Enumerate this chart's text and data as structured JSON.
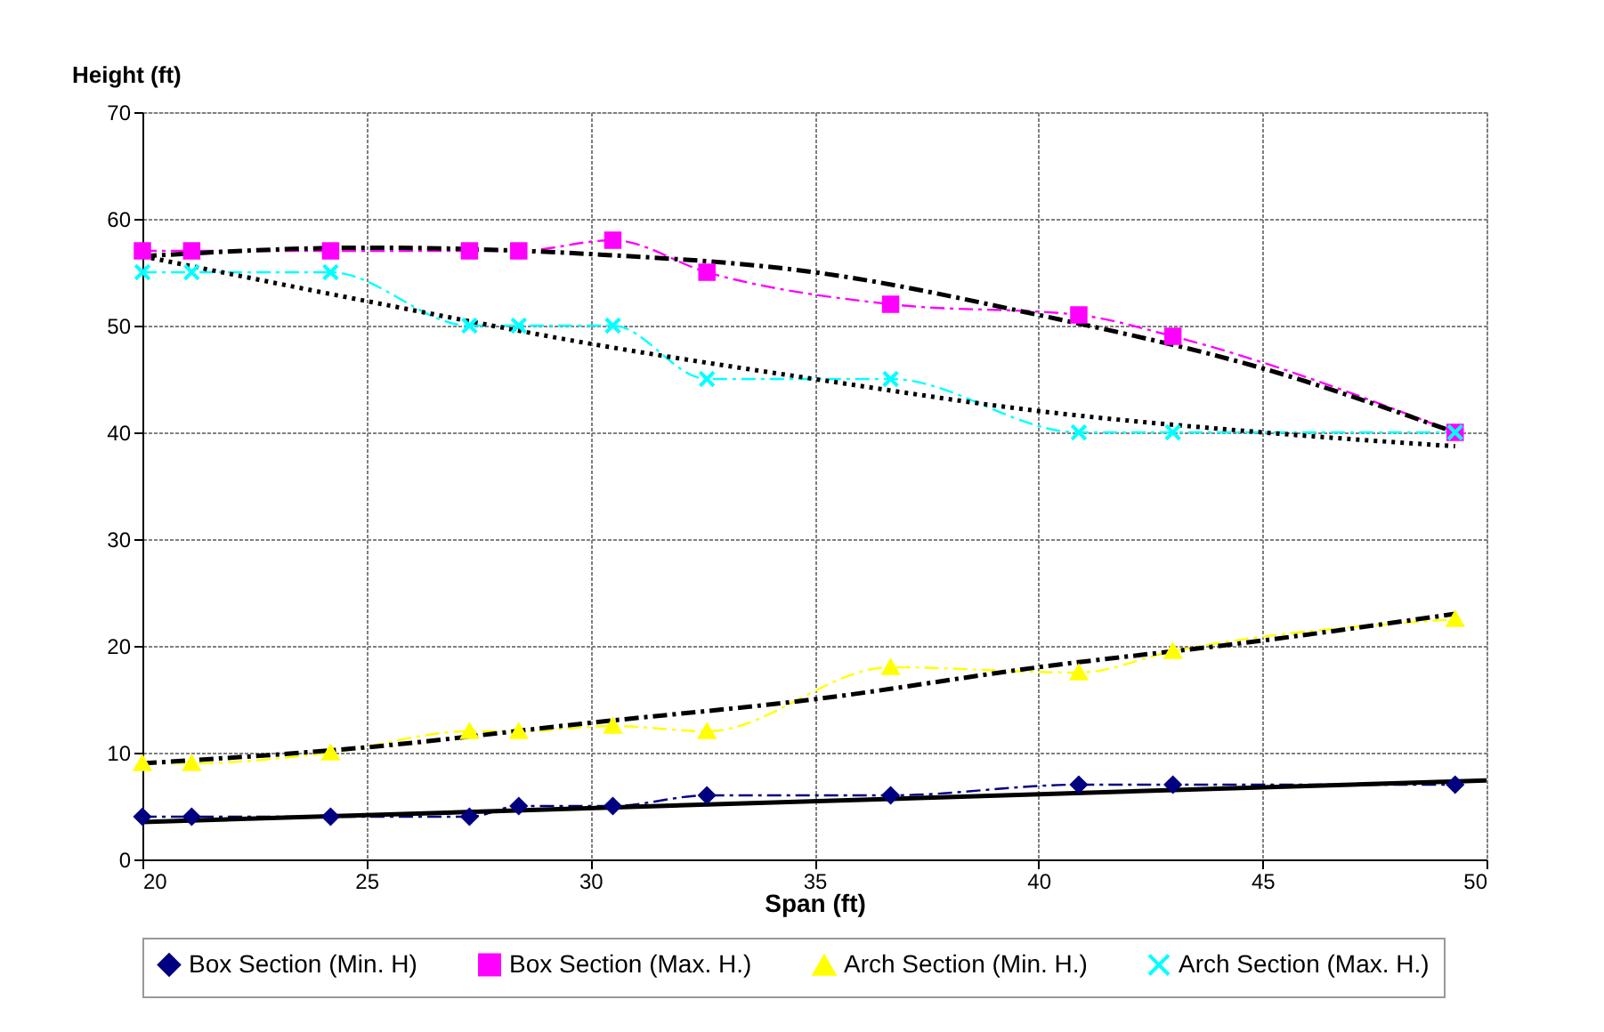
{
  "chart_data": {
    "type": "line",
    "xlabel": "Span (ft)",
    "ylabel": "Height (ft)",
    "xlim": [
      20,
      50
    ],
    "xticks": [
      20,
      25,
      30,
      35,
      40,
      45,
      50
    ],
    "ylim": [
      0,
      70
    ],
    "yticks": [
      0,
      10,
      20,
      30,
      40,
      50,
      60,
      70
    ],
    "grid": true,
    "legend": "bottom",
    "series": [
      {
        "name": "Box Section (Min. H)",
        "color": "#000080",
        "marker": "diamond",
        "line_style": "dashed",
        "x": [
          20,
          21.1,
          24.2,
          27.3,
          28.4,
          30.5,
          32.6,
          36.7,
          40.9,
          43,
          49.3
        ],
        "values": [
          4,
          4,
          4,
          4,
          5,
          5,
          6,
          6,
          7,
          7,
          7
        ]
      },
      {
        "name": "Box Section (Max. H.)",
        "color": "#ff00ff",
        "marker": "square",
        "line_style": "dashed",
        "x": [
          20,
          21.1,
          24.2,
          27.3,
          28.4,
          30.5,
          32.6,
          36.7,
          40.9,
          43,
          49.3
        ],
        "values": [
          57,
          57,
          57,
          57,
          57,
          58,
          55,
          52,
          51,
          49,
          40
        ]
      },
      {
        "name": "Arch Section (Min. H.)",
        "color": "#ffff00",
        "marker": "triangle",
        "line_style": "dashed",
        "x": [
          20,
          21.1,
          24.2,
          27.3,
          28.4,
          30.5,
          32.6,
          36.7,
          40.9,
          43,
          49.3
        ],
        "values": [
          9,
          9,
          10,
          12,
          12,
          12.5,
          12,
          18,
          17.5,
          19.5,
          22.5
        ]
      },
      {
        "name": "Arch Section (Max. H.)",
        "color": "#00ffff",
        "marker": "cross",
        "line_style": "dashed",
        "x": [
          20,
          21.1,
          24.2,
          27.3,
          28.4,
          30.5,
          32.6,
          36.7,
          40.9,
          43,
          49.3
        ],
        "values": [
          55,
          55,
          55,
          50,
          50,
          50,
          45,
          45,
          40,
          40,
          40
        ]
      },
      {
        "type": "line",
        "color": "#000000",
        "marker": "none",
        "line_style": "solid",
        "x": [
          20,
          50
        ],
        "values": [
          3.5,
          7.4
        ]
      },
      {
        "type": "line",
        "color": "#000000",
        "marker": "none",
        "line_style": "dashed",
        "x": [
          20,
          25,
          30,
          35,
          40,
          45,
          49.3
        ],
        "values": [
          56.5,
          57.3,
          56.7,
          55,
          51,
          46,
          40
        ]
      },
      {
        "type": "line",
        "color": "#000000",
        "marker": "none",
        "line_style": "dashed",
        "x": [
          20,
          25,
          30,
          35,
          40,
          45,
          49.3
        ],
        "values": [
          9,
          10.5,
          12.8,
          15,
          18,
          20.5,
          23
        ]
      },
      {
        "type": "line",
        "color": "#000000",
        "marker": "none",
        "line_style": "dotted",
        "x": [
          20,
          25,
          30,
          35,
          40,
          45,
          49.3
        ],
        "values": [
          56.5,
          52.3,
          48.3,
          45,
          42,
          40,
          38.7
        ]
      }
    ]
  }
}
